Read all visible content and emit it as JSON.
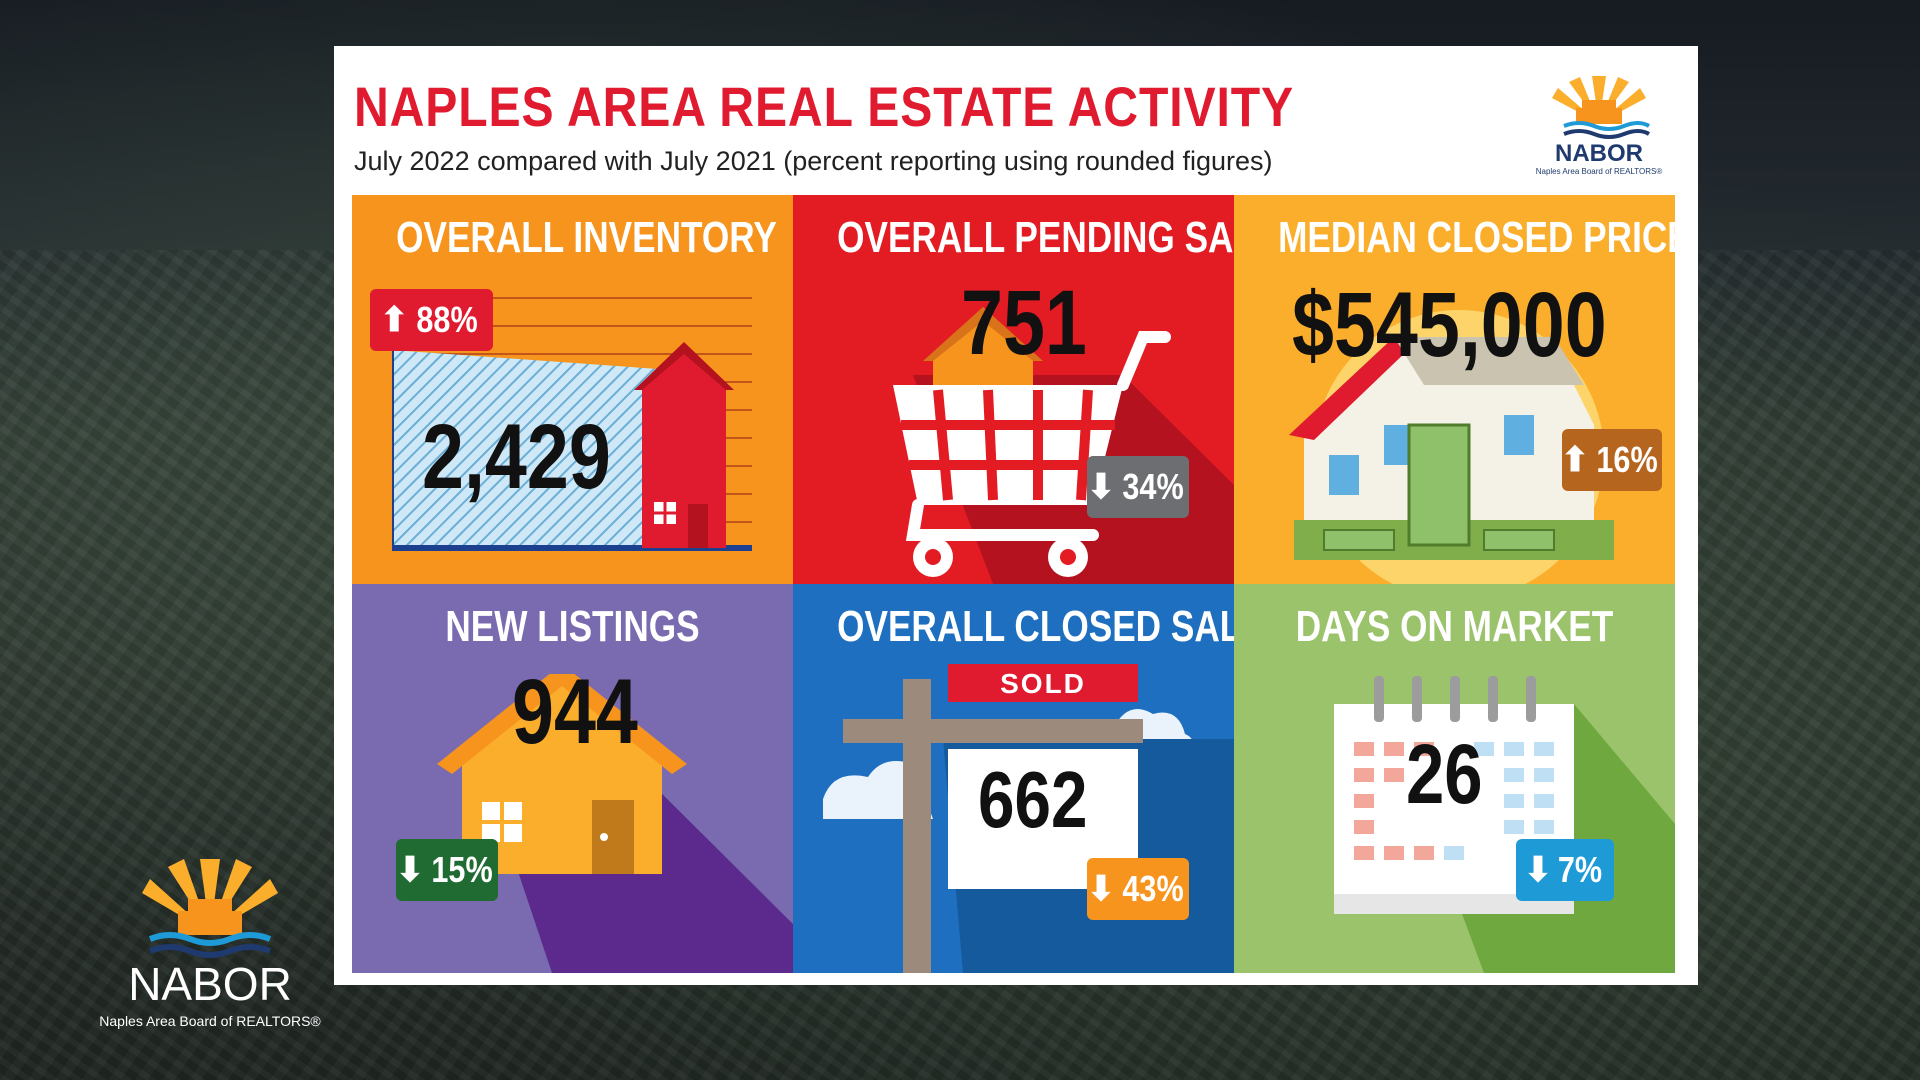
{
  "title": "NAPLES AREA REAL ESTATE ACTIVITY",
  "subtitle": "July 2022 compared with July 2021 (percent reporting using rounded figures)",
  "logo": {
    "word": "NABOR",
    "tagline": "Naples Area Board of REALTORS®"
  },
  "tiles": [
    {
      "title": "OVERALL INVENTORY",
      "value": "2,429",
      "change": "88%",
      "direction": "up",
      "bg": "#f7941d",
      "badge_color": "#e11b2f"
    },
    {
      "title": "OVERALL PENDING SALES",
      "value": "751",
      "change": "34%",
      "direction": "down",
      "bg": "#e31b23",
      "badge_color": "#6d6e71"
    },
    {
      "title": "MEDIAN CLOSED PRICE",
      "value": "$545,000",
      "change": "16%",
      "direction": "up",
      "bg": "#fbae2b",
      "badge_color": "#b5651d"
    },
    {
      "title": "NEW LISTINGS",
      "value": "944",
      "change": "15%",
      "direction": "down",
      "bg": "#7a6bb0",
      "badge_color": "#1f6b32"
    },
    {
      "title": "OVERALL CLOSED SALES",
      "value": "662",
      "change": "43%",
      "direction": "down",
      "bg": "#1e6fbf",
      "badge_color": "#f7941d",
      "sign_label": "SOLD"
    },
    {
      "title": "DAYS ON MARKET",
      "value": "26",
      "change": "7%",
      "direction": "down",
      "bg": "#9bc36b",
      "badge_color": "#1e9ad6"
    }
  ],
  "icons": {
    "up": "arrow-up-icon",
    "down": "arrow-down-icon"
  }
}
